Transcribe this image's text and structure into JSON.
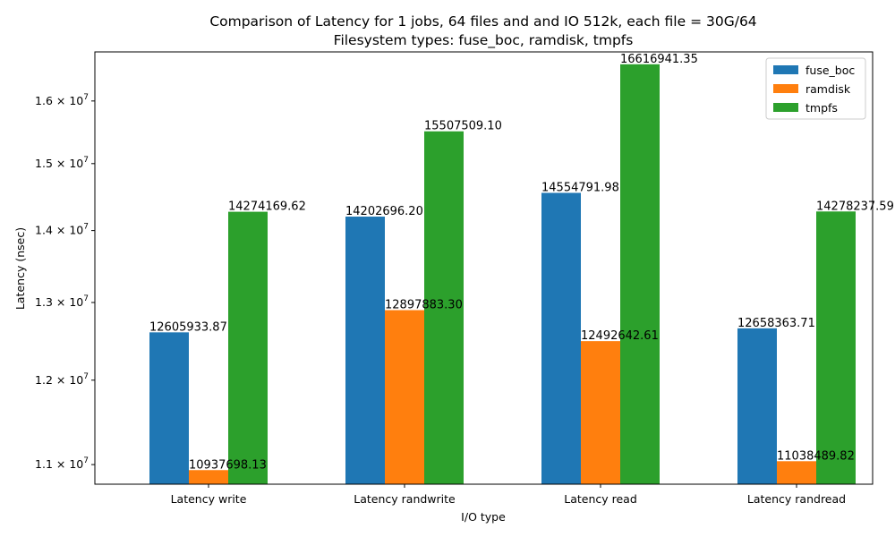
{
  "chart_data": {
    "type": "bar",
    "title": "Comparison of Latency for 1 jobs, 64 files and  and IO 512k, each file = 30G/64",
    "subtitle": "Filesystem types: fuse_boc, ramdisk, tmpfs",
    "xlabel": "I/O type",
    "ylabel": "Latency (nsec)",
    "yscale": "log",
    "ylim": [
      10780000,
      16830000
    ],
    "yticks": [
      {
        "value": 11000000,
        "mantissa": "1.1"
      },
      {
        "value": 12000000,
        "mantissa": "1.2"
      },
      {
        "value": 13000000,
        "mantissa": "1.3"
      },
      {
        "value": 14000000,
        "mantissa": "1.4"
      },
      {
        "value": 15000000,
        "mantissa": "1.5"
      },
      {
        "value": 16000000,
        "mantissa": "1.6"
      }
    ],
    "ytick_multiplier": "× 10",
    "ytick_exponent": "7",
    "categories": [
      "Latency write",
      "Latency randwrite",
      "Latency read",
      "Latency randread"
    ],
    "series": [
      {
        "name": "fuse_boc",
        "color": "#1f77b4",
        "values": [
          12605933.87,
          14202696.2,
          14554791.98,
          12658363.71
        ],
        "labels": [
          "12605933.87",
          "14202696.20",
          "14554791.98",
          "12658363.71"
        ]
      },
      {
        "name": "ramdisk",
        "color": "#ff7f0e",
        "values": [
          10937698.13,
          12897883.3,
          12492642.61,
          11038489.82
        ],
        "labels": [
          "10937698.13",
          "12897883.30",
          "12492642.61",
          "11038489.82"
        ]
      },
      {
        "name": "tmpfs",
        "color": "#2ca02c",
        "values": [
          14274169.62,
          15507509.1,
          16616941.35,
          14278237.59
        ],
        "labels": [
          "14274169.62",
          "15507509.10",
          "16616941.35",
          "14278237.59"
        ]
      }
    ],
    "legend_position": "top-right",
    "grid": false
  }
}
